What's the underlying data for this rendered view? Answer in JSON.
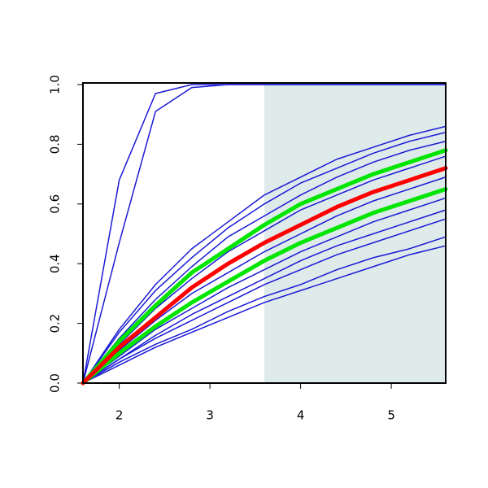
{
  "chart_data": {
    "type": "line",
    "x": [
      1.6,
      2.0,
      2.4,
      2.8,
      3.2,
      3.6,
      4.0,
      4.4,
      4.8,
      5.2,
      5.6
    ],
    "xlim": [
      1.6,
      5.6
    ],
    "ylim": [
      0,
      1
    ],
    "xticks": [
      2,
      3,
      4,
      5
    ],
    "yticks": [
      {
        "value": 0,
        "label": "0.0"
      },
      {
        "value": 0.2,
        "label": "0.2"
      },
      {
        "value": 0.4,
        "label": "0.4"
      },
      {
        "value": 0.6,
        "label": "0.6"
      },
      {
        "value": 0.8,
        "label": "0.8"
      },
      {
        "value": 1,
        "label": "1.0"
      }
    ],
    "shaded_region": {
      "xmin": 3.6,
      "xmax": 5.6,
      "color": "#dfeaea"
    },
    "series": [
      {
        "color": "#1a1ad6",
        "line_width": 1.5,
        "values": [
          0,
          0.68,
          0.97,
          1,
          1,
          1,
          1,
          1,
          1,
          1,
          1
        ]
      },
      {
        "color": "#1a1ad6",
        "line_width": 1.5,
        "values": [
          0,
          0.47,
          0.91,
          0.99,
          1,
          1,
          1,
          1,
          1,
          1,
          1
        ]
      },
      {
        "color": "#1a1ad6",
        "line_width": 1.5,
        "values": [
          0,
          0.18,
          0.33,
          0.45,
          0.54,
          0.63,
          0.69,
          0.75,
          0.79,
          0.83,
          0.86
        ]
      },
      {
        "color": "#1a1ad6",
        "line_width": 1.5,
        "values": [
          0,
          0.17,
          0.31,
          0.42,
          0.52,
          0.6,
          0.67,
          0.72,
          0.77,
          0.81,
          0.84
        ]
      },
      {
        "color": "#1a1ad6",
        "line_width": 1.5,
        "values": [
          0,
          0.15,
          0.28,
          0.39,
          0.49,
          0.56,
          0.63,
          0.69,
          0.74,
          0.78,
          0.81
        ]
      },
      {
        "color": "#1a1ad6",
        "line_width": 1.5,
        "values": [
          0,
          0.13,
          0.25,
          0.35,
          0.44,
          0.51,
          0.58,
          0.63,
          0.68,
          0.72,
          0.76
        ]
      },
      {
        "color": "#1a1ad6",
        "line_width": 1.5,
        "values": [
          0,
          0.11,
          0.21,
          0.3,
          0.37,
          0.44,
          0.5,
          0.56,
          0.61,
          0.65,
          0.69
        ]
      },
      {
        "color": "#1a1ad6",
        "line_width": 1.5,
        "values": [
          0,
          0.09,
          0.18,
          0.25,
          0.32,
          0.38,
          0.44,
          0.49,
          0.54,
          0.58,
          0.62
        ]
      },
      {
        "color": "#1a1ad6",
        "line_width": 1.5,
        "values": [
          0,
          0.08,
          0.16,
          0.23,
          0.29,
          0.35,
          0.41,
          0.46,
          0.5,
          0.54,
          0.58
        ]
      },
      {
        "color": "#1a1ad6",
        "line_width": 1.5,
        "values": [
          0,
          0.08,
          0.15,
          0.21,
          0.27,
          0.33,
          0.38,
          0.43,
          0.47,
          0.51,
          0.55
        ]
      },
      {
        "color": "#1a1ad6",
        "line_width": 1.5,
        "values": [
          0,
          0.07,
          0.13,
          0.18,
          0.24,
          0.29,
          0.33,
          0.38,
          0.42,
          0.45,
          0.49
        ]
      },
      {
        "color": "#1a1ad6",
        "line_width": 1.5,
        "values": [
          0,
          0.06,
          0.12,
          0.17,
          0.22,
          0.27,
          0.31,
          0.35,
          0.39,
          0.43,
          0.46
        ]
      },
      {
        "color": "#00e600",
        "line_width": 5,
        "values": [
          0,
          0.14,
          0.26,
          0.37,
          0.45,
          0.53,
          0.6,
          0.65,
          0.7,
          0.74,
          0.78
        ]
      },
      {
        "color": "#00e600",
        "line_width": 5,
        "values": [
          0,
          0.1,
          0.19,
          0.27,
          0.34,
          0.41,
          0.47,
          0.52,
          0.57,
          0.61,
          0.65
        ]
      },
      {
        "color": "#ff0000",
        "line_width": 5,
        "values": [
          0,
          0.12,
          0.22,
          0.32,
          0.4,
          0.47,
          0.53,
          0.59,
          0.64,
          0.68,
          0.72
        ]
      }
    ]
  }
}
